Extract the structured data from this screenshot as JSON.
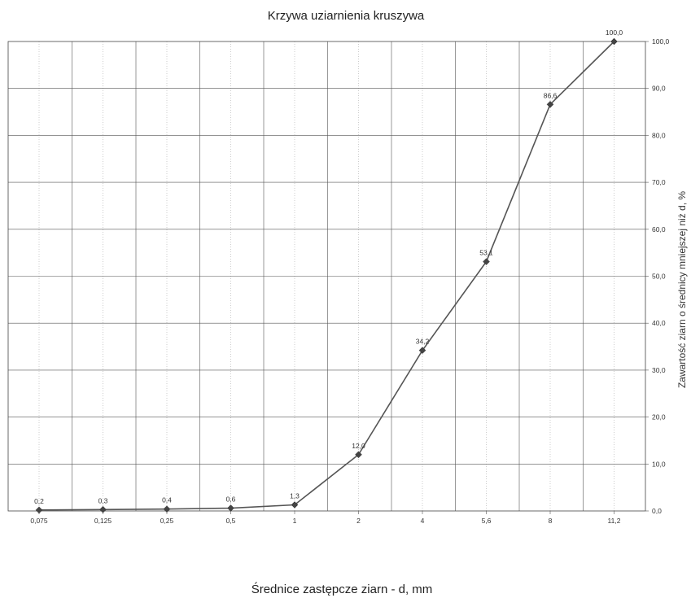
{
  "chart_data": {
    "type": "line",
    "title": "Krzywa uziarnienia kruszywa",
    "xlabel": "Średnice zastępcze ziarn - d, mm",
    "ylabel": "Zawartość ziarn  o średnicy mniejszej niż d, %",
    "x_scale": "categorical",
    "categories": [
      "0,075",
      "0,125",
      "0,25",
      "0,5",
      "1",
      "2",
      "4",
      "5,6",
      "8",
      "11,2"
    ],
    "ylim": [
      0,
      100
    ],
    "y_ticks": [
      "0,0",
      "10,0",
      "20,0",
      "30,0",
      "40,0",
      "50,0",
      "60,0",
      "70,0",
      "80,0",
      "90,0",
      "100,0"
    ],
    "y_axis_position": "right",
    "grid": true,
    "series": [
      {
        "values": [
          0.2,
          0.3,
          0.4,
          0.6,
          1.3,
          12.0,
          34.2,
          53.1,
          86.6,
          100.0
        ],
        "labels": [
          "0,2",
          "0,3",
          "0,4",
          "0,6",
          "1,3",
          "12,0",
          "34,2",
          "53,1",
          "86,6",
          "100,0"
        ],
        "color": "#555555",
        "marker": "diamond"
      }
    ]
  }
}
